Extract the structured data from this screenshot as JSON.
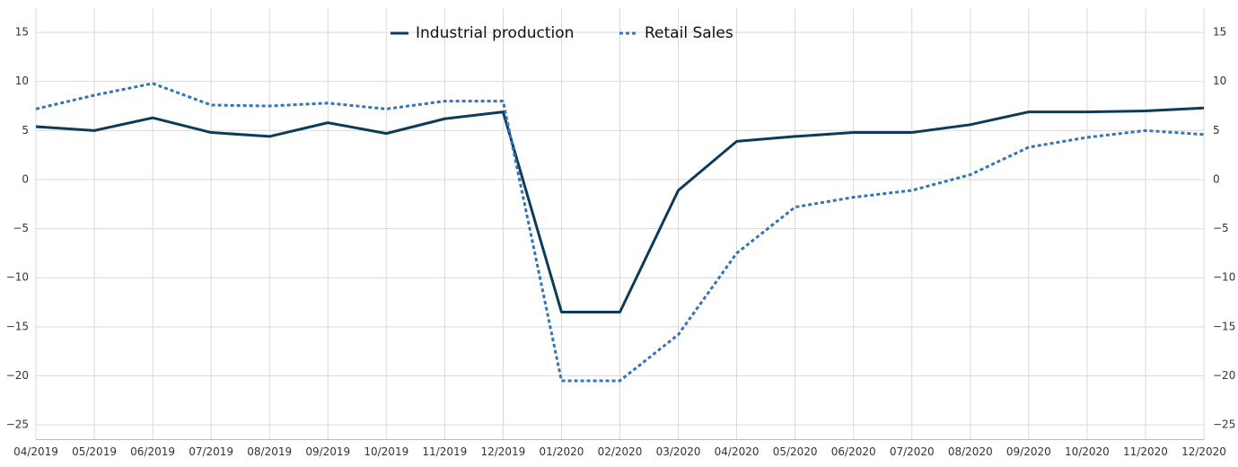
{
  "chart_data": {
    "type": "line",
    "categories": [
      "04/2019",
      "05/2019",
      "06/2019",
      "07/2019",
      "08/2019",
      "09/2019",
      "10/2019",
      "11/2019",
      "12/2019",
      "01/2020",
      "02/2020",
      "03/2020",
      "04/2020",
      "05/2020",
      "06/2020",
      "07/2020",
      "08/2020",
      "09/2020",
      "10/2020",
      "11/2020",
      "12/2020"
    ],
    "series": [
      {
        "name": "Industrial production",
        "color": "#0d3b5a",
        "style": "solid",
        "values": [
          5.4,
          5.0,
          6.3,
          4.8,
          4.4,
          5.8,
          4.7,
          6.2,
          6.9,
          -13.5,
          -13.5,
          -1.1,
          3.9,
          4.4,
          4.8,
          4.8,
          5.6,
          6.9,
          6.9,
          7.0,
          7.3
        ]
      },
      {
        "name": "Retail Sales",
        "color": "#3574b5",
        "style": "dotted",
        "values": [
          7.2,
          8.6,
          9.8,
          7.6,
          7.5,
          7.8,
          7.2,
          8.0,
          8.0,
          -20.5,
          -20.5,
          -15.8,
          -7.5,
          -2.8,
          -1.8,
          -1.1,
          0.5,
          3.3,
          4.3,
          5.0,
          4.6
        ]
      }
    ],
    "ylim": [
      -26.5,
      17.5
    ],
    "yticks": [
      {
        "value": -25,
        "label": "−25"
      },
      {
        "value": -20,
        "label": "−20"
      },
      {
        "value": -15,
        "label": "−15"
      },
      {
        "value": -10,
        "label": "−10"
      },
      {
        "value": -5,
        "label": "−5"
      },
      0,
      5,
      10,
      15
    ],
    "grid": true,
    "legend": "top"
  }
}
